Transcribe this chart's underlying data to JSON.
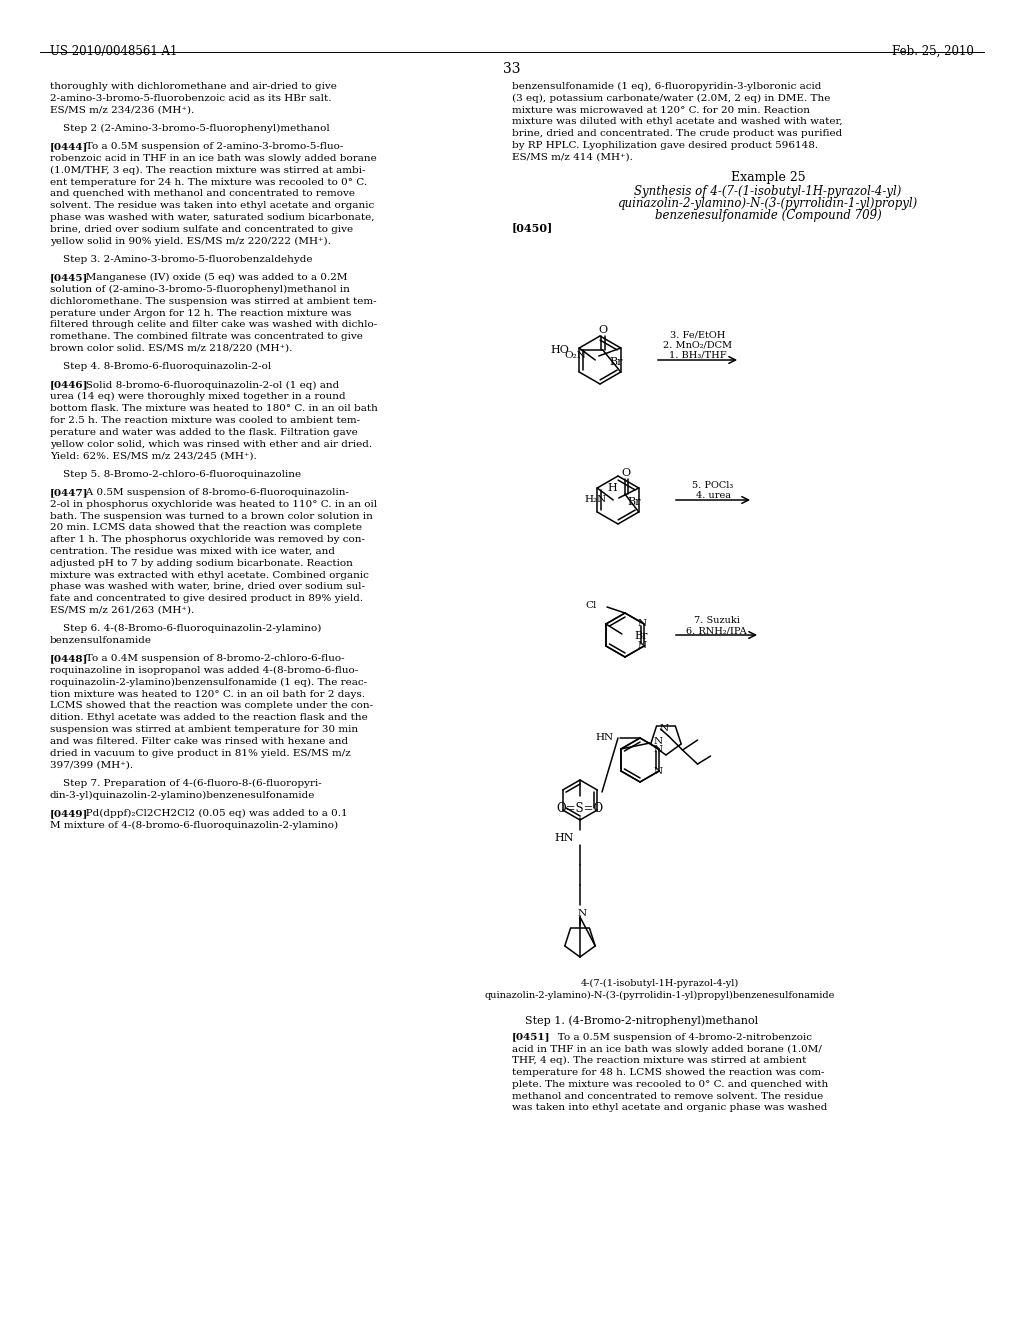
{
  "background_color": "#ffffff",
  "page_number": "33",
  "header_left": "US 2010/0048561 A1",
  "header_right": "Feb. 25, 2010",
  "left_col_lines": [
    "thoroughly with dichloromethane and air-dried to give",
    "2-amino-3-bromo-5-fluorobenzoic acid as its HBr salt.",
    "ES/MS m/z 234/236 (MH⁺).",
    "",
    "    Step 2 (2-Amino-3-bromo-5-fluorophenyl)methanol",
    "",
    "[0444]   To a 0.5M suspension of 2-amino-3-bromo-5-fluo-",
    "robenzoic acid in THF in an ice bath was slowly added borane",
    "(1.0M/THF, 3 eq). The reaction mixture was stirred at ambi-",
    "ent temperature for 24 h. The mixture was recooled to 0° C.",
    "and quenched with methanol and concentrated to remove",
    "solvent. The residue was taken into ethyl acetate and organic",
    "phase was washed with water, saturated sodium bicarbonate,",
    "brine, dried over sodium sulfate and concentrated to give",
    "yellow solid in 90% yield. ES/MS m/z 220/222 (MH⁺).",
    "",
    "    Step 3. 2-Amino-3-bromo-5-fluorobenzaldehyde",
    "",
    "[0445]   Manganese (IV) oxide (5 eq) was added to a 0.2M",
    "solution of (2-amino-3-bromo-5-fluorophenyl)methanol in",
    "dichloromethane. The suspension was stirred at ambient tem-",
    "perature under Argon for 12 h. The reaction mixture was",
    "filtered through celite and filter cake was washed with dichlo-",
    "romethane. The combined filtrate was concentrated to give",
    "brown color solid. ES/MS m/z 218/220 (MH⁺).",
    "",
    "    Step 4. 8-Bromo-6-fluoroquinazolin-2-ol",
    "",
    "[0446]   Solid 8-bromo-6-fluoroquinazolin-2-ol (1 eq) and",
    "urea (14 eq) were thoroughly mixed together in a round",
    "bottom flask. The mixture was heated to 180° C. in an oil bath",
    "for 2.5 h. The reaction mixture was cooled to ambient tem-",
    "perature and water was added to the flask. Filtration gave",
    "yellow color solid, which was rinsed with ether and air dried.",
    "Yield: 62%. ES/MS m/z 243/245 (MH⁺).",
    "",
    "    Step 5. 8-Bromo-2-chloro-6-fluoroquinazoline",
    "",
    "[0447]   A 0.5M suspension of 8-bromo-6-fluoroquinazolin-",
    "2-ol in phosphorus oxychloride was heated to 110° C. in an oil",
    "bath. The suspension was turned to a brown color solution in",
    "20 min. LCMS data showed that the reaction was complete",
    "after 1 h. The phosphorus oxychloride was removed by con-",
    "centration. The residue was mixed with ice water, and",
    "adjusted pH to 7 by adding sodium bicarbonate. Reaction",
    "mixture was extracted with ethyl acetate. Combined organic",
    "phase was washed with water, brine, dried over sodium sul-",
    "fate and concentrated to give desired product in 89% yield.",
    "ES/MS m/z 261/263 (MH⁺).",
    "",
    "    Step 6. 4-(8-Bromo-6-fluoroquinazolin-2-ylamino)",
    "benzensulfonamide",
    "",
    "[0448]   To a 0.4M suspension of 8-bromo-2-chloro-6-fluo-",
    "roquinazoline in isopropanol was added 4-(8-bromo-6-fluo-",
    "roquinazolin-2-ylamino)benzensulfonamide (1 eq). The reac-",
    "tion mixture was heated to 120° C. in an oil bath for 2 days.",
    "LCMS showed that the reaction was complete under the con-",
    "dition. Ethyl acetate was added to the reaction flask and the",
    "suspension was stirred at ambient temperature for 30 min",
    "and was filtered. Filter cake was rinsed with hexane and",
    "dried in vacuum to give product in 81% yield. ES/MS m/z",
    "397/399 (MH⁺).",
    "",
    "    Step 7. Preparation of 4-(6-fluoro-8-(6-fluoropyri-",
    "din-3-yl)quinazolin-2-ylamino)benzenesulfonamide",
    "",
    "[0449]   Pd(dppf)₂Cl2CH2Cl2 (0.05 eq) was added to a 0.1",
    "M mixture of 4-(8-bromo-6-fluoroquinazolin-2-ylamino)"
  ],
  "right_col_top_lines": [
    "benzensulfonamide (1 eq), 6-fluoropyridin-3-ylboronic acid",
    "(3 eq), potassium carbonate/water (2.0M, 2 eq) in DME. The",
    "mixture was microwaved at 120° C. for 20 min. Reaction",
    "mixture was diluted with ethyl acetate and washed with water,",
    "brine, dried and concentrated. The crude product was purified",
    "by RP HPLC. Lyophilization gave desired product 596148.",
    "ES/MS m/z 414 (MH⁺)."
  ],
  "right_col_bottom_lines": [
    "    Step 1. (4-Bromo-2-nitrophenyl)methanol",
    "",
    "[0451]   To a 0.5M suspension of 4-bromo-2-nitrobenzoic",
    "acid in THF in an ice bath was slowly added borane (1.0M/",
    "THF, 4 eq). The reaction mixture was stirred at ambient",
    "temperature for 48 h. LCMS showed the reaction was com-",
    "plete. The mixture was recooled to 0° C. and quenched with",
    "methanol and concentrated to remove solvent. The residue",
    "was taken into ethyl acetate and organic phase was washed"
  ],
  "example_title": "Example 25",
  "synth_line1": "Synthesis of 4-(7-(1-isobutyl-1H-pyrazol-4-yl)",
  "synth_line2": "quinazolin-2-ylamino)-N-(3-(pyrrolidin-1-yl)propyl)",
  "synth_line3": "benzenesulfonamide (Compound 709)",
  "para_0450": "[0450]",
  "caption_line1": "4-(7-(1-isobutyl-1H-pyrazol-4-yl)",
  "caption_line2": "quinazolin-2-ylamino)-N-(3-(pyrrolidin-1-yl)propyl)benzenesulfonamide"
}
